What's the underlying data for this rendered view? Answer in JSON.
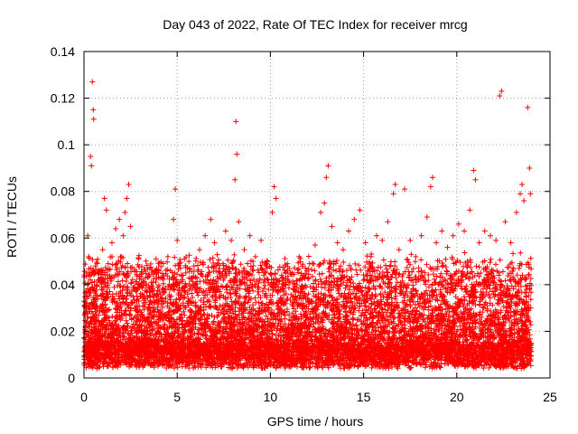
{
  "chart_data": {
    "type": "scatter",
    "title": "Day 043 of 2022, Rate Of TEC Index for receiver mrcg",
    "xlabel": "GPS time / hours",
    "ylabel": "ROTI / TECUs",
    "xlim": [
      0,
      25
    ],
    "ylim": [
      0,
      0.14
    ],
    "xticks": [
      0,
      5,
      10,
      15,
      20,
      25
    ],
    "yticks": [
      0,
      0.02,
      0.04,
      0.06,
      0.08,
      0.1,
      0.12,
      0.14
    ],
    "xtick_labels": [
      "0",
      "5",
      "10",
      "15",
      "20",
      "25"
    ],
    "ytick_labels": [
      "0",
      "0.02",
      "0.04",
      "0.06",
      "0.08",
      "0.1",
      "0.12",
      "0.14"
    ],
    "grid": true,
    "marker": "plus",
    "color": "#ff0000",
    "series": [
      {
        "points": [
          [
            0.05,
            0.012
          ],
          [
            0.1,
            0.028
          ],
          [
            0.15,
            0.045
          ],
          [
            0.2,
            0.061
          ],
          [
            0.25,
            0.052
          ],
          [
            0.3,
            0.038
          ],
          [
            0.35,
            0.095
          ],
          [
            0.4,
            0.091
          ],
          [
            0.45,
            0.127
          ],
          [
            0.5,
            0.115
          ],
          [
            0.52,
            0.111
          ],
          [
            0.6,
            0.048
          ],
          [
            0.7,
            0.031
          ],
          [
            0.8,
            0.022
          ],
          [
            0.9,
            0.041
          ],
          [
            1.0,
            0.055
          ],
          [
            1.1,
            0.077
          ],
          [
            1.2,
            0.072
          ],
          [
            1.3,
            0.049
          ],
          [
            1.5,
            0.058
          ],
          [
            1.7,
            0.064
          ],
          [
            1.9,
            0.068
          ],
          [
            2.0,
            0.052
          ],
          [
            2.1,
            0.061
          ],
          [
            2.2,
            0.071
          ],
          [
            2.3,
            0.077
          ],
          [
            2.4,
            0.083
          ],
          [
            2.5,
            0.065
          ],
          [
            2.7,
            0.039
          ],
          [
            3.0,
            0.029
          ],
          [
            3.3,
            0.034
          ],
          [
            3.6,
            0.041
          ],
          [
            3.9,
            0.045
          ],
          [
            4.2,
            0.038
          ],
          [
            4.5,
            0.052
          ],
          [
            4.8,
            0.068
          ],
          [
            4.9,
            0.081
          ],
          [
            5.0,
            0.059
          ],
          [
            5.3,
            0.044
          ],
          [
            5.6,
            0.033
          ],
          [
            5.9,
            0.048
          ],
          [
            6.2,
            0.055
          ],
          [
            6.5,
            0.061
          ],
          [
            6.8,
            0.068
          ],
          [
            7.0,
            0.058
          ],
          [
            7.3,
            0.045
          ],
          [
            7.6,
            0.063
          ],
          [
            7.9,
            0.059
          ],
          [
            8.1,
            0.085
          ],
          [
            8.2,
            0.096
          ],
          [
            8.15,
            0.11
          ],
          [
            8.3,
            0.067
          ],
          [
            8.6,
            0.055
          ],
          [
            8.9,
            0.061
          ],
          [
            9.2,
            0.052
          ],
          [
            9.5,
            0.059
          ],
          [
            9.8,
            0.049
          ],
          [
            10.1,
            0.071
          ],
          [
            10.2,
            0.082
          ],
          [
            10.3,
            0.077
          ],
          [
            10.6,
            0.044
          ],
          [
            10.9,
            0.021
          ],
          [
            11.2,
            0.031
          ],
          [
            11.5,
            0.037
          ],
          [
            11.8,
            0.044
          ],
          [
            12.1,
            0.049
          ],
          [
            12.4,
            0.057
          ],
          [
            12.7,
            0.071
          ],
          [
            12.9,
            0.075
          ],
          [
            13.0,
            0.086
          ],
          [
            13.1,
            0.091
          ],
          [
            13.3,
            0.065
          ],
          [
            13.6,
            0.058
          ],
          [
            13.9,
            0.055
          ],
          [
            14.2,
            0.063
          ],
          [
            14.5,
            0.068
          ],
          [
            14.8,
            0.072
          ],
          [
            15.1,
            0.058
          ],
          [
            15.4,
            0.052
          ],
          [
            15.7,
            0.061
          ],
          [
            16.0,
            0.059
          ],
          [
            16.3,
            0.067
          ],
          [
            16.6,
            0.079
          ],
          [
            16.7,
            0.083
          ],
          [
            16.9,
            0.055
          ],
          [
            17.2,
            0.081
          ],
          [
            17.5,
            0.059
          ],
          [
            17.8,
            0.052
          ],
          [
            18.1,
            0.061
          ],
          [
            18.4,
            0.069
          ],
          [
            18.6,
            0.082
          ],
          [
            18.7,
            0.086
          ],
          [
            18.9,
            0.058
          ],
          [
            19.2,
            0.063
          ],
          [
            19.5,
            0.056
          ],
          [
            19.8,
            0.061
          ],
          [
            20.1,
            0.066
          ],
          [
            20.4,
            0.063
          ],
          [
            20.7,
            0.072
          ],
          [
            20.9,
            0.089
          ],
          [
            21.0,
            0.085
          ],
          [
            21.2,
            0.058
          ],
          [
            21.5,
            0.063
          ],
          [
            21.8,
            0.061
          ],
          [
            22.1,
            0.059
          ],
          [
            22.3,
            0.121
          ],
          [
            22.4,
            0.123
          ],
          [
            22.6,
            0.067
          ],
          [
            22.9,
            0.058
          ],
          [
            23.2,
            0.071
          ],
          [
            23.4,
            0.079
          ],
          [
            23.5,
            0.083
          ],
          [
            23.6,
            0.076
          ],
          [
            23.8,
            0.116
          ],
          [
            23.9,
            0.09
          ],
          [
            23.95,
            0.079
          ]
        ]
      }
    ]
  }
}
